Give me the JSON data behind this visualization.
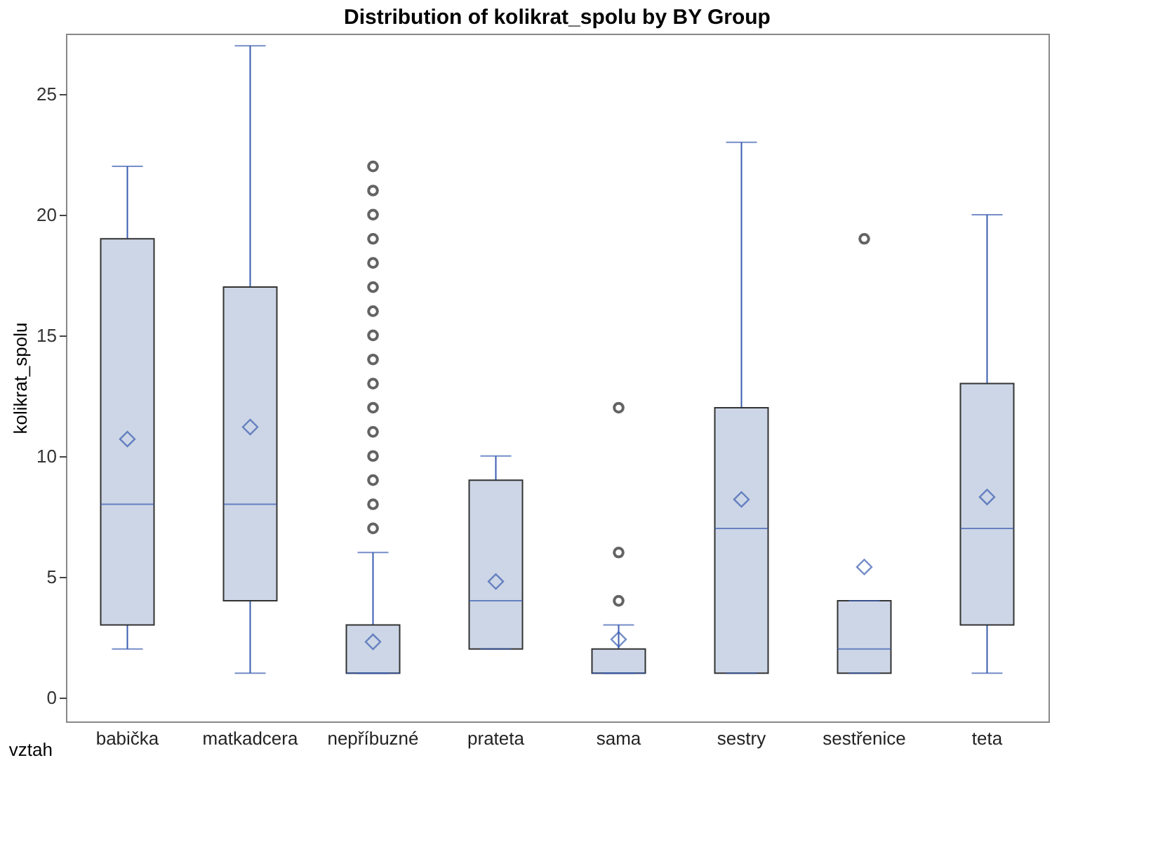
{
  "chart_data": {
    "type": "box",
    "title": "Distribution of kolikrat_spolu by BY Group",
    "xlabel": "vztah",
    "ylabel": "kolikrat_spolu",
    "categories": [
      "babička",
      "matkadcera",
      "nepříbuzné",
      "prateta",
      "sama",
      "sestry",
      "sestřenice",
      "teta"
    ],
    "color": "#cdd6e6",
    "boxes": [
      {
        "low": 2,
        "q1": 3,
        "median": 8,
        "q3": 19,
        "high": 22,
        "mean": 10.7
      },
      {
        "low": 1,
        "q1": 4,
        "median": 8,
        "q3": 17,
        "high": 27,
        "mean": 11.2
      },
      {
        "low": 1,
        "q1": 1,
        "median": 1,
        "q3": 3,
        "high": 6,
        "mean": 2.3,
        "outliers": [
          7,
          8,
          9,
          10,
          11,
          12,
          13,
          14,
          15,
          16,
          17,
          18,
          19,
          20,
          21,
          22
        ]
      },
      {
        "low": 2,
        "q1": 2,
        "median": 4,
        "q3": 9,
        "high": 10,
        "mean": 4.8
      },
      {
        "low": 1,
        "q1": 1,
        "median": 1,
        "q3": 2,
        "high": 3,
        "mean": 2.4,
        "outliers": [
          4,
          6,
          12
        ]
      },
      {
        "low": 1,
        "q1": 1,
        "median": 7,
        "q3": 12,
        "high": 23,
        "mean": 8.2
      },
      {
        "low": 1,
        "q1": 1,
        "median": 2,
        "q3": 4,
        "high": 4,
        "mean": 5.4,
        "outliers": [
          19
        ]
      },
      {
        "low": 1,
        "q1": 3,
        "median": 7,
        "q3": 13,
        "high": 20,
        "mean": 8.3
      }
    ],
    "ylim": [
      -1,
      27.5
    ],
    "yticks": [
      0,
      5,
      10,
      15,
      20,
      25
    ],
    "grid": false
  }
}
